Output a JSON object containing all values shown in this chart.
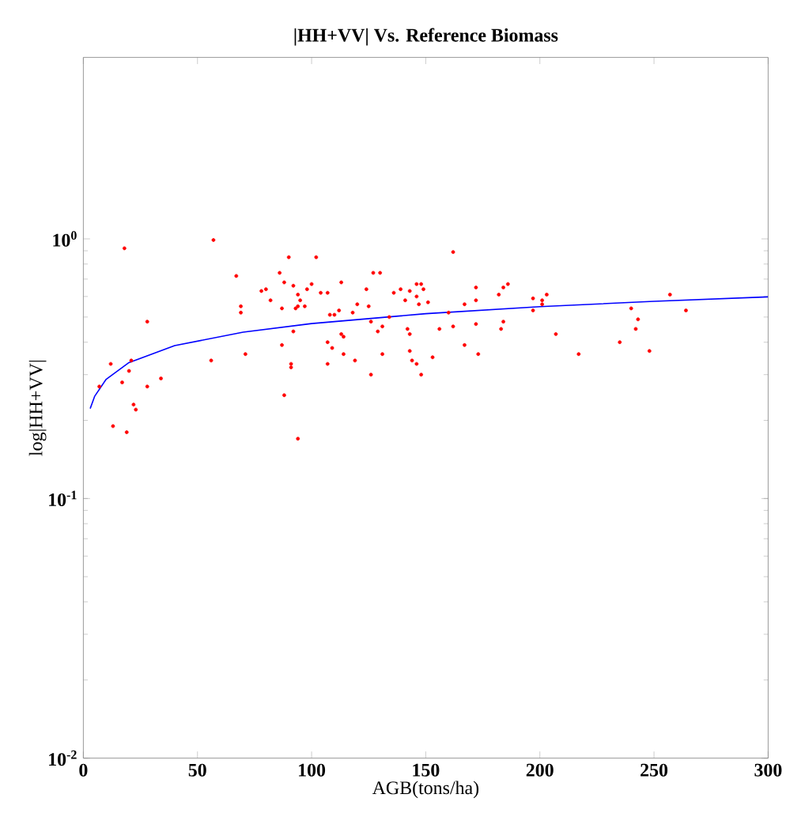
{
  "chart_data": {
    "type": "scatter",
    "title": "|HH+VV| Vs. Reference Biomass",
    "xlabel": "AGB(tons/ha)",
    "ylabel": "log|HH+VV|",
    "log": "y",
    "grid": false,
    "xlim": [
      0,
      300
    ],
    "ylim": [
      0.01,
      5
    ],
    "xticks": [
      0,
      50,
      100,
      150,
      200,
      250,
      300
    ],
    "yticks": [
      {
        "value": 0.01,
        "label": "10$^{-2}$"
      },
      {
        "value": 0.1,
        "label": "10$^{-1}$"
      },
      {
        "value": 1,
        "label": "10$^{0}$"
      }
    ],
    "series": [
      {
        "color": "#ff0000",
        "marker": "circle",
        "x": [
          18,
          57,
          7,
          12,
          13,
          19,
          17,
          21,
          20,
          22,
          23,
          28,
          28,
          34,
          56,
          67,
          69,
          69,
          71,
          78,
          80,
          82,
          86,
          88,
          90,
          92,
          94,
          95,
          93,
          94,
          87,
          87,
          91,
          91,
          88,
          94,
          92,
          97,
          98,
          100,
          102,
          104,
          107,
          107,
          109,
          107,
          108,
          110,
          112,
          113,
          113,
          114,
          114,
          119,
          118,
          120,
          124,
          125,
          126,
          127,
          130,
          129,
          131,
          131,
          126,
          134,
          136,
          139,
          141,
          142,
          143,
          143,
          144,
          146,
          148,
          143,
          146,
          147,
          149,
          151,
          146,
          148,
          153,
          156,
          162,
          162,
          160,
          167,
          167,
          172,
          172,
          172,
          173,
          182,
          184,
          183,
          184,
          186,
          197,
          197,
          201,
          201,
          203,
          207,
          217,
          235,
          240,
          243,
          242,
          248,
          257,
          264
        ],
        "values": [
          0.92,
          0.99,
          0.27,
          0.33,
          0.19,
          0.18,
          0.28,
          0.34,
          0.31,
          0.23,
          0.22,
          0.48,
          0.27,
          0.29,
          0.34,
          0.72,
          0.55,
          0.52,
          0.36,
          0.63,
          0.64,
          0.58,
          0.74,
          0.68,
          0.85,
          0.66,
          0.61,
          0.58,
          0.54,
          0.55,
          0.54,
          0.39,
          0.33,
          0.32,
          0.25,
          0.17,
          0.44,
          0.55,
          0.64,
          0.67,
          0.85,
          0.62,
          0.62,
          0.4,
          0.38,
          0.33,
          0.51,
          0.51,
          0.53,
          0.68,
          0.43,
          0.42,
          0.36,
          0.34,
          0.52,
          0.56,
          0.64,
          0.55,
          0.48,
          0.74,
          0.74,
          0.44,
          0.36,
          0.46,
          0.3,
          0.5,
          0.62,
          0.64,
          0.58,
          0.45,
          0.43,
          0.37,
          0.34,
          0.67,
          0.67,
          0.63,
          0.6,
          0.56,
          0.64,
          0.57,
          0.33,
          0.3,
          0.35,
          0.45,
          0.46,
          0.89,
          0.52,
          0.56,
          0.39,
          0.65,
          0.58,
          0.47,
          0.36,
          0.61,
          0.48,
          0.45,
          0.65,
          0.67,
          0.59,
          0.53,
          0.58,
          0.56,
          0.61,
          0.43,
          0.36,
          0.4,
          0.54,
          0.49,
          0.45,
          0.37,
          0.61,
          0.53
        ]
      },
      {
        "type": "line",
        "color": "#0000ff",
        "marker": "none",
        "line_style": "solid",
        "x": [
          3,
          5,
          10,
          20,
          40,
          70,
          100,
          150,
          200,
          250,
          300
        ],
        "values": [
          0.222,
          0.248,
          0.288,
          0.334,
          0.388,
          0.437,
          0.472,
          0.515,
          0.548,
          0.575,
          0.598
        ]
      }
    ]
  }
}
